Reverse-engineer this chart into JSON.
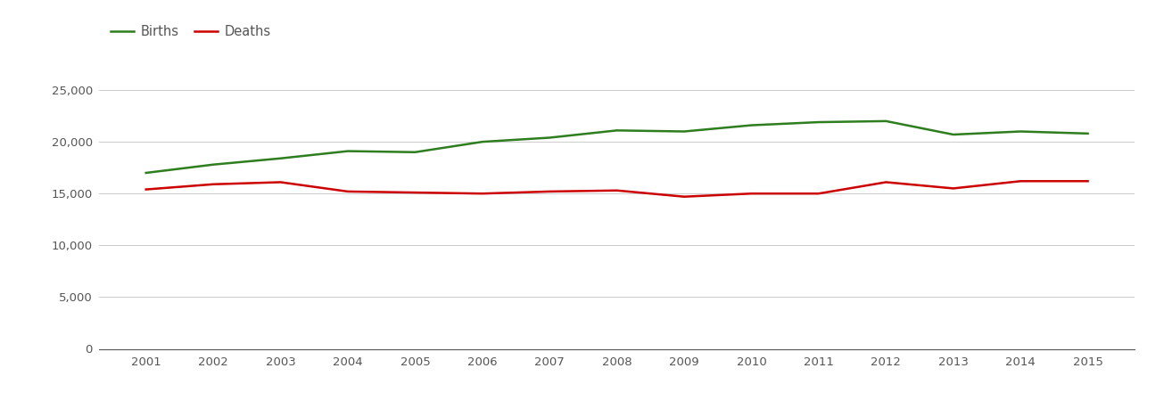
{
  "years": [
    2001,
    2002,
    2003,
    2004,
    2005,
    2006,
    2007,
    2008,
    2009,
    2010,
    2011,
    2012,
    2013,
    2014,
    2015
  ],
  "births": [
    17000,
    17800,
    18400,
    19100,
    19000,
    20000,
    20400,
    21100,
    21000,
    21600,
    21900,
    22000,
    20700,
    21000,
    20800
  ],
  "deaths": [
    15400,
    15900,
    16100,
    15200,
    15100,
    15000,
    15200,
    15300,
    14700,
    15000,
    15000,
    16100,
    15500,
    16200,
    16200
  ],
  "births_color": "#2e7d1e",
  "deaths_color": "#cc0000",
  "line_width": 1.8,
  "ylim": [
    0,
    27500
  ],
  "yticks": [
    0,
    5000,
    10000,
    15000,
    20000,
    25000
  ],
  "background_color": "#ffffff",
  "grid_color": "#cccccc",
  "legend_labels": [
    "Births",
    "Deaths"
  ],
  "tick_color": "#555555",
  "spine_color": "#555555"
}
